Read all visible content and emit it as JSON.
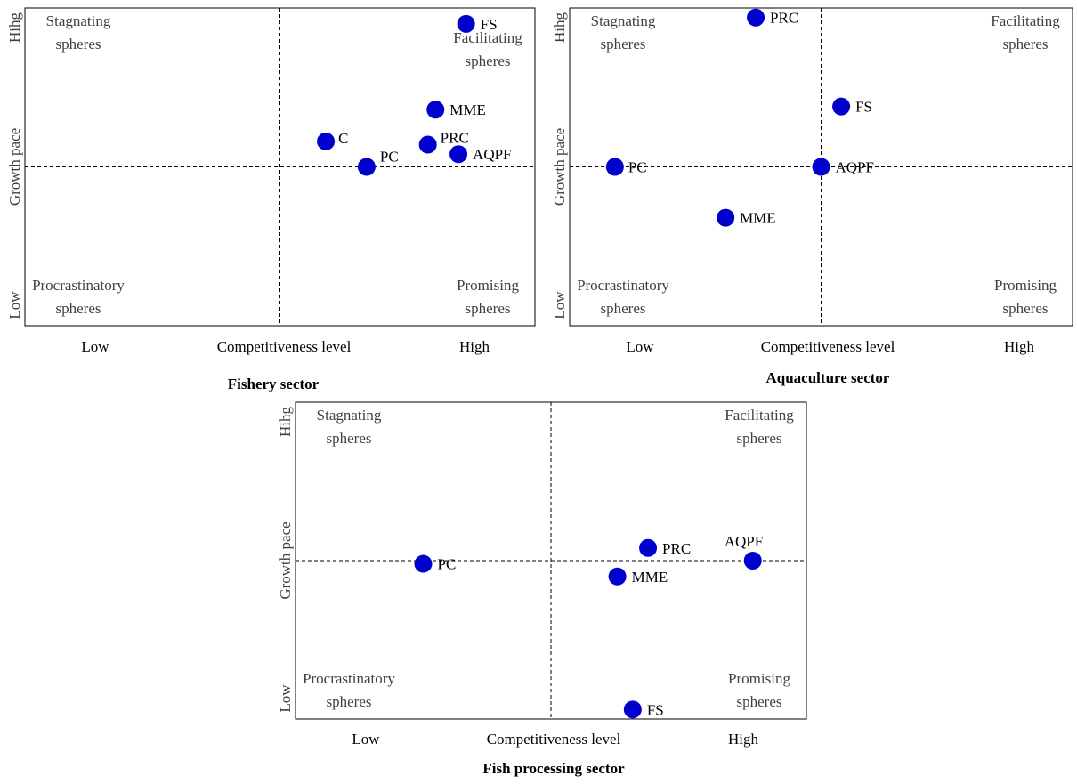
{
  "chart_data": [
    {
      "type": "scatter",
      "title": "Fishery sector",
      "xlabel": "Competitiveness  level",
      "ylabel": "Growth pace",
      "x_ticks": [
        "Low",
        "High"
      ],
      "y_ticks": [
        "Low",
        "Hihg"
      ],
      "xlim": [
        0,
        100
      ],
      "ylim": [
        0,
        100
      ],
      "divider": {
        "x": 50,
        "y": 50
      },
      "quadrants": {
        "top_left": [
          "Stagnating",
          "spheres"
        ],
        "top_right": [
          "Facilitating",
          "spheres"
        ],
        "bottom_left": [
          "Procrastinatory",
          "spheres"
        ],
        "bottom_right": [
          "Promising",
          "spheres"
        ]
      },
      "points": [
        {
          "label": "FS",
          "x": 86.5,
          "y": 95
        },
        {
          "label": "MME",
          "x": 80.5,
          "y": 68
        },
        {
          "label": "C",
          "x": 59,
          "y": 58
        },
        {
          "label": "PRC",
          "x": 79,
          "y": 57
        },
        {
          "label": "PC",
          "x": 67,
          "y": 50
        },
        {
          "label": "AQPF",
          "x": 85,
          "y": 54
        }
      ],
      "color": "#0000cc"
    },
    {
      "type": "scatter",
      "title": "Aquaculture  sector",
      "xlabel": "Competitiveness  level",
      "ylabel": "Growth pace",
      "x_ticks": [
        "Low",
        "High"
      ],
      "y_ticks": [
        "Low",
        "Hihg"
      ],
      "xlim": [
        0,
        100
      ],
      "ylim": [
        0,
        100
      ],
      "divider": {
        "x": 50,
        "y": 50
      },
      "quadrants": {
        "top_left": [
          "Stagnating",
          "spheres"
        ],
        "top_right": [
          "Facilitating",
          "spheres"
        ],
        "bottom_left": [
          "Procrastinatory",
          "spheres"
        ],
        "bottom_right": [
          "Promising",
          "spheres"
        ]
      },
      "points": [
        {
          "label": "PRC",
          "x": 37,
          "y": 97
        },
        {
          "label": "FS",
          "x": 54,
          "y": 69
        },
        {
          "label": "PC",
          "x": 9,
          "y": 50
        },
        {
          "label": "AQPF",
          "x": 50,
          "y": 50
        },
        {
          "label": "MME",
          "x": 31,
          "y": 34
        }
      ],
      "color": "#0000cc"
    },
    {
      "type": "scatter",
      "title": "Fish processing sector",
      "xlabel": "Competitiveness  level",
      "ylabel": "Growth pace",
      "x_ticks": [
        "Low",
        "High"
      ],
      "y_ticks": [
        "Low",
        "Hihg"
      ],
      "xlim": [
        0,
        100
      ],
      "ylim": [
        0,
        100
      ],
      "divider": {
        "x": 50,
        "y": 50
      },
      "quadrants": {
        "top_left": [
          "Stagnating",
          "spheres"
        ],
        "top_right": [
          "Facilitating",
          "spheres"
        ],
        "bottom_left": [
          "Procrastinatory",
          "spheres"
        ],
        "bottom_right": [
          "Promising",
          "spheres"
        ]
      },
      "points": [
        {
          "label": "PC",
          "x": 25,
          "y": 49
        },
        {
          "label": "PRC",
          "x": 69,
          "y": 54
        },
        {
          "label": "AQPF",
          "x": 89.5,
          "y": 50
        },
        {
          "label": "MME",
          "x": 63,
          "y": 45
        },
        {
          "label": "FS",
          "x": 66,
          "y": 3
        }
      ],
      "color": "#0000cc"
    }
  ]
}
